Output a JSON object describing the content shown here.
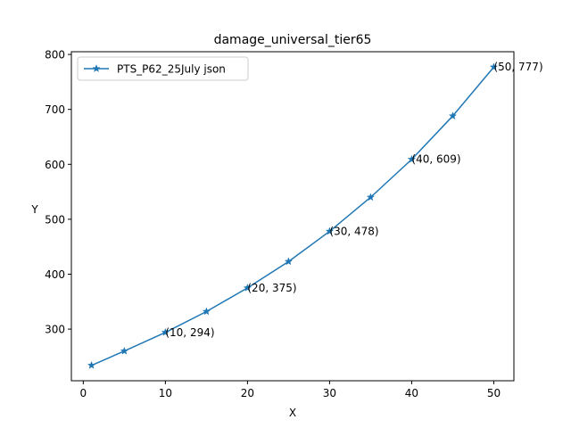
{
  "chart_data": {
    "type": "line",
    "title": "damage_universal_tier65",
    "xlabel": "X",
    "ylabel": "Y",
    "xlim": [
      -1.45,
      52.45
    ],
    "ylim": [
      206,
      805
    ],
    "xticks": [
      0,
      10,
      20,
      30,
      40,
      50
    ],
    "yticks": [
      300,
      400,
      500,
      600,
      700,
      800
    ],
    "grid": false,
    "legend_position": "top-left",
    "series": [
      {
        "name": "PTS_P62_25July json",
        "color": "#1f77b4",
        "marker": "star",
        "x": [
          1,
          5,
          10,
          15,
          20,
          25,
          30,
          35,
          40,
          45,
          50
        ],
        "y": [
          234,
          260,
          294,
          332,
          375,
          423,
          478,
          540,
          609,
          688,
          777
        ]
      }
    ],
    "annotations": [
      {
        "text": "(10, 294)",
        "x": 10,
        "y": 294
      },
      {
        "text": "(20, 375)",
        "x": 20,
        "y": 375
      },
      {
        "text": "(30, 478)",
        "x": 30,
        "y": 478
      },
      {
        "text": "(40, 609)",
        "x": 40,
        "y": 609
      },
      {
        "text": "(50, 777)",
        "x": 50,
        "y": 777
      }
    ]
  }
}
